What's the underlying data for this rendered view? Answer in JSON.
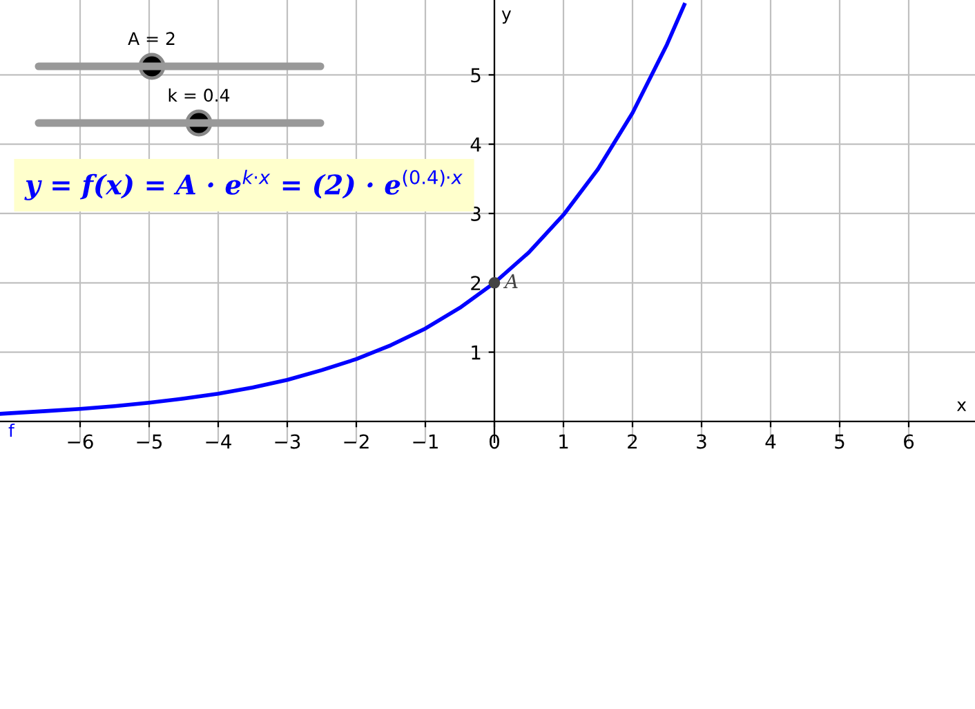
{
  "chart_data": {
    "type": "line",
    "xlabel": "x",
    "ylabel": "y",
    "xlim": [
      -7.16,
      6.96
    ],
    "ylim": [
      -0.3,
      6.08
    ],
    "xticks": [
      {
        "value": -6,
        "label": "−6"
      },
      {
        "value": -5,
        "label": "−5"
      },
      {
        "value": -4,
        "label": "−4"
      },
      {
        "value": -3,
        "label": "−3"
      },
      {
        "value": -2,
        "label": "−2"
      },
      {
        "value": -1,
        "label": "−1"
      },
      0,
      1,
      2,
      3,
      4,
      5,
      6
    ],
    "yticks": [
      1,
      2,
      3,
      4,
      5
    ],
    "grid": true,
    "series": [
      {
        "name": "f",
        "color": "#0000ff",
        "x": [
          -7.16,
          -7,
          -6.5,
          -6,
          -5.5,
          -5,
          -4.5,
          -4,
          -3.5,
          -3,
          -2.5,
          -2,
          -1.5,
          -1,
          -0.5,
          0,
          0.5,
          1,
          1.5,
          2,
          2.5,
          2.75
        ],
        "values": [
          0.11,
          0.12,
          0.15,
          0.18,
          0.22,
          0.27,
          0.33,
          0.4,
          0.49,
          0.6,
          0.74,
          0.9,
          1.1,
          1.34,
          1.64,
          2,
          2.44,
          2.98,
          3.64,
          4.45,
          5.44,
          6.01
        ]
      },
      {
        "name": "A",
        "type": "scatter",
        "color": "#444444",
        "x": [
          0
        ],
        "values": [
          2
        ]
      }
    ],
    "annotations": [
      "A = 2",
      "k = 0.4",
      "y = f(x) = A · e$^{k·x}$ = (2) · e$^{(0.4)·x}$"
    ]
  }
}
